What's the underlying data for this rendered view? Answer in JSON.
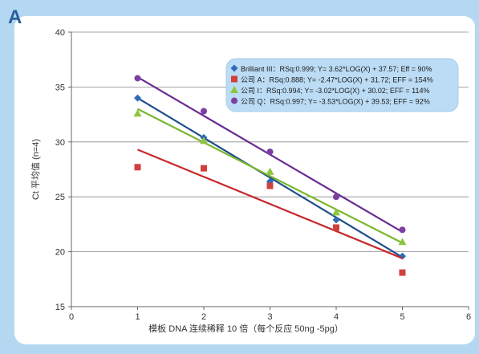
{
  "panel": {
    "label": "A"
  },
  "chart_data": {
    "type": "scatter",
    "title": "",
    "xlabel": "模板 DNA 连续稀释 10 倍（每个反应 50ng -5pg）",
    "ylabel": "Ct 平均值 (n=4)",
    "xlim": [
      0,
      6
    ],
    "ylim": [
      15,
      40
    ],
    "xticks": [
      "0",
      "1",
      "2",
      "3",
      "4",
      "5",
      "6"
    ],
    "yticks": [
      "15",
      "20",
      "25",
      "30",
      "35",
      "40"
    ],
    "grid": "horizontal",
    "legend_position": "top-right",
    "series": [
      {
        "name": "Brilliant III",
        "legend_text": "Brilliant III：RSq:0.999; Y= 3.62*LOG(X) + 37.57; Eff = 90%",
        "marker": "diamond",
        "color": "#2e6bb8",
        "line_color": "#1f4e8c",
        "x": [
          1,
          2,
          3,
          4,
          5
        ],
        "y": [
          34.0,
          30.4,
          26.4,
          22.9,
          19.6
        ],
        "fit": {
          "x": [
            1,
            5
          ],
          "y": [
            34.0,
            19.5
          ]
        }
      },
      {
        "name": "公司 A",
        "legend_text": "公司 A：RSq:0.888; Y= -2.47*LOG(X) + 31.72; EFF = 154%",
        "marker": "square",
        "color": "#d0403c",
        "line_color": "#c8282c",
        "x": [
          1,
          2,
          3,
          4,
          5
        ],
        "y": [
          27.7,
          27.6,
          26.0,
          22.2,
          18.1
        ],
        "fit": {
          "x": [
            1,
            5
          ],
          "y": [
            29.3,
            19.4
          ]
        }
      },
      {
        "name": "公司 I",
        "legend_text": "公司 I：RSq:0.994; Y= -3.02*LOG(X) + 30.02; EFF = 114%",
        "marker": "triangle",
        "color": "#8cc63f",
        "line_color": "#7ab830",
        "x": [
          1,
          2,
          3,
          4,
          5
        ],
        "y": [
          32.6,
          30.1,
          27.3,
          23.6,
          20.9
        ],
        "fit": {
          "x": [
            1,
            5
          ],
          "y": [
            33.0,
            20.8
          ]
        }
      },
      {
        "name": "公司 Q",
        "legend_text": "公司 Q：RSq:0.997; Y= -3.53*LOG(X) + 39.53; EFF = 92%",
        "marker": "circle",
        "color": "#7b3fa3",
        "line_color": "#6a2c91",
        "x": [
          1,
          2,
          3,
          4,
          5
        ],
        "y": [
          35.8,
          32.8,
          29.1,
          25.0,
          22.0
        ],
        "fit": {
          "x": [
            1,
            5
          ],
          "y": [
            35.9,
            21.8
          ]
        }
      }
    ]
  }
}
